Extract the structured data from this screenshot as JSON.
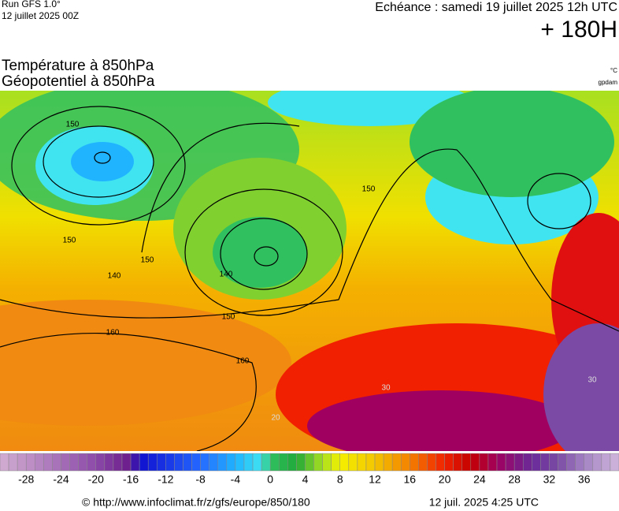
{
  "header": {
    "run": "Run GFS 1.0°",
    "run_date": "12 juillet 2025 00Z",
    "valid": "Echéance : samedi 19 juillet 2025 12h UTC",
    "lead": "+ 180H",
    "title_1": "Température à 850hPa",
    "title_2": "Géopotentiel à 850hPa",
    "unit_temp": "°C",
    "unit_geo": "gpdam"
  },
  "map": {
    "contour_labels": [
      "150",
      "150",
      "140",
      "150",
      "160",
      "160",
      "150",
      "140",
      "150",
      "30",
      "20",
      "30"
    ]
  },
  "colorbar": {
    "range": [
      -31,
      40
    ],
    "ticks": [
      -28,
      -24,
      -20,
      -16,
      -12,
      -8,
      -4,
      0,
      4,
      8,
      12,
      16,
      20,
      24,
      28,
      32,
      36
    ],
    "stops": [
      [
        -31,
        "#d2aed2"
      ],
      [
        -20,
        "#8c4aa8"
      ],
      [
        -16,
        "#6a1a8a"
      ],
      [
        -15,
        "#1010d0"
      ],
      [
        -8,
        "#2468ff"
      ],
      [
        -4,
        "#20b4ff"
      ],
      [
        -1,
        "#40e4f0"
      ],
      [
        0,
        "#30c060"
      ],
      [
        3,
        "#20a838"
      ],
      [
        6,
        "#a8e020"
      ],
      [
        8,
        "#f4f000"
      ],
      [
        12,
        "#f4c400"
      ],
      [
        16,
        "#f48000"
      ],
      [
        20,
        "#f02000"
      ],
      [
        23,
        "#c40000"
      ],
      [
        26,
        "#a00060"
      ],
      [
        30,
        "#6a2a9a"
      ],
      [
        33,
        "#7a4aa4"
      ],
      [
        36,
        "#a482c4"
      ],
      [
        40,
        "#d0b8dc"
      ]
    ]
  },
  "footer": {
    "url": "© http://www.infoclimat.fr/z/gfs/europe/850/180",
    "time": "12 juil. 2025  4:25 UTC"
  }
}
